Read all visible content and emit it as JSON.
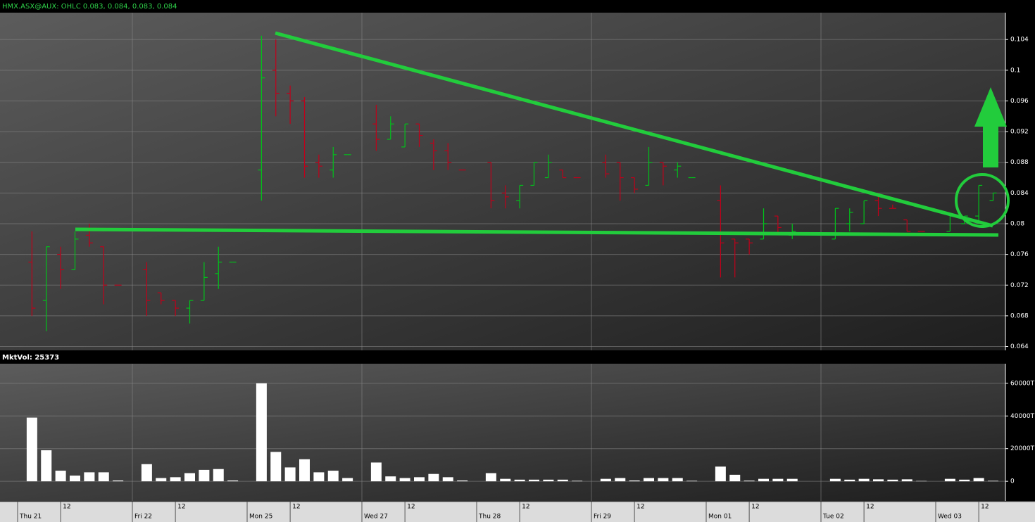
{
  "chart_data": [
    {
      "type": "ohlc",
      "title": "HMX.ASX@AUX: OHLC 0.083, 0.084, 0.083, 0.084",
      "up_color": "#00c21a",
      "down_color": "#c0001a",
      "open": [
        null,
        0.075,
        0.07,
        0.076,
        0.074,
        0.0785,
        0.077,
        0.072,
        null,
        0.074,
        0.071,
        0.07,
        0.069,
        0.07,
        0.0735,
        0.075,
        null,
        0.087,
        0.1,
        0.097,
        0.096,
        0.088,
        0.087,
        0.089,
        null,
        0.093,
        0.091,
        0.09,
        0.093,
        0.0905,
        0.0895,
        0.087,
        null,
        0.088,
        0.084,
        0.083,
        0.085,
        0.086,
        0.087,
        0.086,
        null,
        0.088,
        0.088,
        0.086,
        0.085,
        0.088,
        0.087,
        0.086,
        null,
        0.083,
        0.078,
        0.078,
        0.078,
        0.081,
        0.0785,
        null,
        null,
        0.078,
        0.08,
        0.08,
        0.083,
        0.082,
        0.0805,
        0.079,
        null,
        0.079,
        0.08,
        0.081,
        0.083
      ],
      "high": [
        null,
        0.079,
        0.077,
        0.077,
        0.079,
        0.08,
        0.077,
        0.072,
        null,
        0.075,
        0.071,
        0.07,
        0.07,
        0.075,
        0.077,
        0.075,
        null,
        0.1045,
        0.104,
        0.098,
        0.0965,
        0.089,
        0.09,
        0.089,
        null,
        0.0955,
        0.094,
        0.093,
        0.093,
        0.091,
        0.0905,
        0.087,
        null,
        0.088,
        0.085,
        0.085,
        0.088,
        0.089,
        0.087,
        0.086,
        null,
        0.089,
        0.088,
        0.086,
        0.09,
        0.088,
        0.088,
        0.086,
        null,
        0.085,
        0.078,
        0.078,
        0.082,
        0.081,
        0.08,
        null,
        null,
        0.082,
        0.082,
        0.083,
        0.084,
        0.0825,
        0.0805,
        0.079,
        null,
        0.081,
        0.081,
        0.085,
        0.084
      ],
      "low": [
        null,
        0.068,
        0.066,
        0.0715,
        0.074,
        0.077,
        0.0695,
        0.072,
        null,
        0.068,
        0.0695,
        0.068,
        0.067,
        0.07,
        0.0715,
        0.075,
        null,
        0.083,
        0.094,
        0.093,
        0.086,
        0.086,
        0.086,
        0.089,
        null,
        0.0895,
        0.091,
        0.09,
        0.09,
        0.087,
        0.087,
        0.087,
        null,
        0.082,
        0.082,
        0.082,
        0.085,
        0.086,
        0.086,
        0.086,
        null,
        0.086,
        0.083,
        0.084,
        0.085,
        0.085,
        0.086,
        0.086,
        null,
        0.073,
        0.073,
        0.076,
        0.078,
        0.0785,
        0.078,
        null,
        null,
        0.078,
        0.079,
        0.08,
        0.081,
        0.082,
        0.079,
        0.079,
        null,
        0.079,
        0.08,
        0.08,
        0.083
      ],
      "close": [
        null,
        0.069,
        0.077,
        0.074,
        0.078,
        0.0775,
        0.072,
        0.072,
        null,
        0.07,
        0.07,
        0.069,
        0.07,
        0.073,
        0.075,
        0.075,
        null,
        0.099,
        0.097,
        0.096,
        0.0875,
        0.0875,
        0.089,
        0.089,
        null,
        0.091,
        0.093,
        0.093,
        0.0915,
        0.0895,
        0.088,
        0.087,
        null,
        0.083,
        0.0835,
        0.085,
        0.088,
        0.088,
        0.086,
        0.086,
        null,
        0.0865,
        0.086,
        0.0845,
        0.088,
        0.0875,
        0.0875,
        0.086,
        null,
        0.0775,
        0.0775,
        0.0775,
        0.08,
        0.0795,
        0.079,
        null,
        null,
        0.082,
        0.0815,
        0.083,
        0.082,
        0.082,
        0.079,
        0.079,
        null,
        0.081,
        0.081,
        0.085,
        0.084
      ],
      "ylim": [
        0.0635,
        0.1075
      ],
      "yticks": [
        0.064,
        0.068,
        0.072,
        0.076,
        0.08,
        0.084,
        0.088,
        0.092,
        0.096,
        0.1,
        0.104
      ],
      "grid": true
    },
    {
      "type": "bar",
      "title": "MktVol: 25373",
      "color": "#ffffff",
      "categories": [
        "Thu 21",
        null,
        null,
        "12",
        null,
        null,
        null,
        null,
        "Fri 22",
        null,
        null,
        "12",
        null,
        null,
        null,
        null,
        "Mon 25",
        null,
        null,
        "12",
        null,
        null,
        null,
        null,
        "Wed 27",
        null,
        null,
        "12",
        null,
        null,
        null,
        null,
        "Thu 28",
        null,
        null,
        "12",
        null,
        null,
        null,
        null,
        "Fri 29",
        null,
        null,
        "12",
        null,
        null,
        null,
        null,
        "Mon 01",
        null,
        null,
        "12",
        null,
        null,
        null,
        null,
        "Tue 02",
        null,
        null,
        "12",
        null,
        null,
        null,
        null,
        "Wed 03",
        null,
        null,
        "12",
        null
      ],
      "values": [
        null,
        39000,
        19000,
        6500,
        3500,
        5500,
        5500,
        500,
        null,
        10500,
        2000,
        2500,
        5000,
        7000,
        7500,
        500,
        null,
        60000,
        18000,
        8500,
        13500,
        5500,
        6500,
        2000,
        null,
        11500,
        3000,
        2000,
        2500,
        4500,
        2500,
        500,
        null,
        5000,
        1500,
        1000,
        1000,
        1000,
        1000,
        300,
        null,
        1500,
        2000,
        500,
        2000,
        2000,
        2000,
        300,
        null,
        9000,
        4000,
        400,
        1500,
        1500,
        1500,
        null,
        null,
        1500,
        1000,
        1500,
        1200,
        1000,
        1200,
        200,
        null,
        1500,
        1000,
        2000,
        300
      ],
      "ylim": [
        -12000,
        72000
      ],
      "yticks": [
        0,
        {
          "value": 20000,
          "label": "20000T"
        },
        {
          "value": 40000,
          "label": "40000T"
        },
        {
          "value": 60000,
          "label": "60000T"
        }
      ],
      "grid": true
    }
  ]
}
